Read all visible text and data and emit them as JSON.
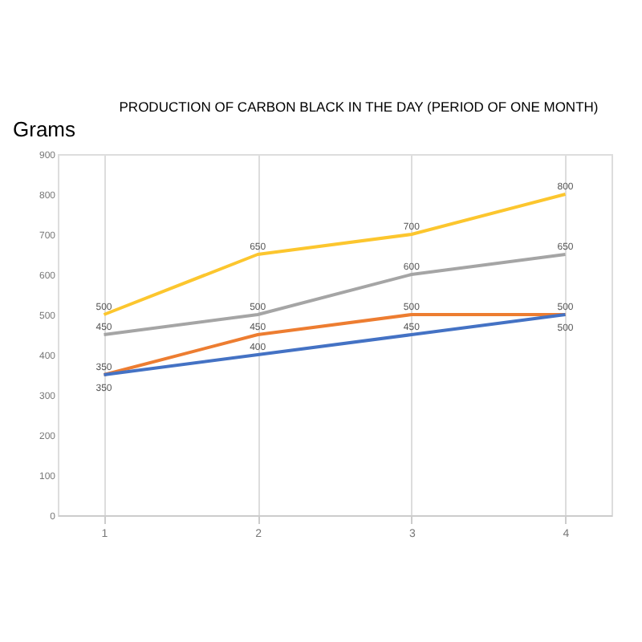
{
  "chart_data": {
    "type": "line",
    "title": "PRODUCTION OF CARBON BLACK IN THE DAY (PERIOD OF ONE MONTH)",
    "ylabel": "Grams",
    "categories": [
      "1",
      "2",
      "3",
      "4"
    ],
    "series": [
      {
        "color": "#fcc62e",
        "values": [
          500,
          650,
          700,
          800
        ]
      },
      {
        "color": "#a5a5a5",
        "values": [
          450,
          500,
          600,
          650
        ]
      },
      {
        "color": "#ed7d31",
        "values": [
          350,
          450,
          500,
          500
        ]
      },
      {
        "color": "#4472c4",
        "values": [
          350,
          400,
          450,
          500
        ]
      }
    ],
    "ylim": [
      0,
      900
    ],
    "yticks": [
      0,
      100,
      200,
      300,
      400,
      500,
      600,
      700,
      800,
      900
    ],
    "grid": "x",
    "legend": false,
    "marker": "none",
    "line_style": "solid",
    "data_labels": true
  }
}
